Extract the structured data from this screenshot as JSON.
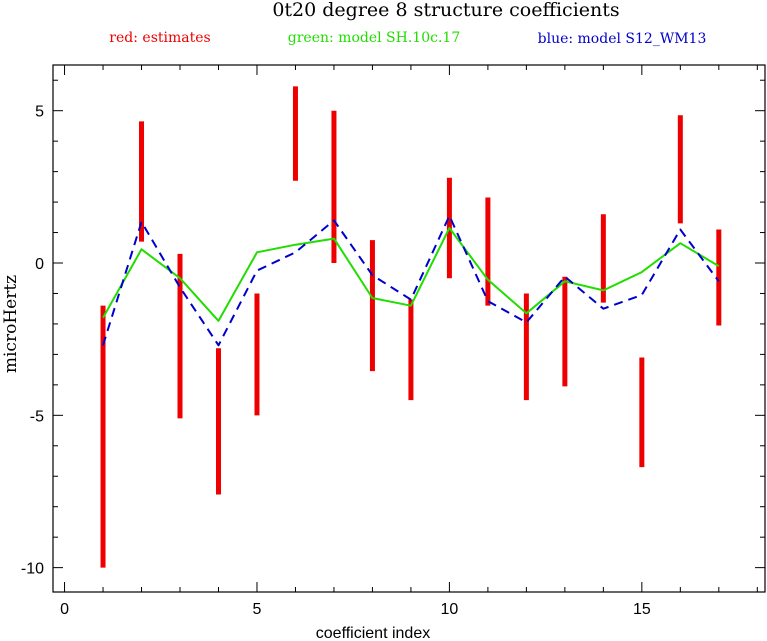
{
  "chart_data": {
    "type": "line",
    "title": "0t20 degree 8 structure coefficients",
    "legend": [
      {
        "label": "red: estimates",
        "color": "#ee0000"
      },
      {
        "label": "green: model SH.10c.17",
        "color": "#22dd00"
      },
      {
        "label": "blue: model S12_WM13",
        "color": "#0000cc"
      }
    ],
    "xlabel": "coefficient index",
    "ylabel": "microHertz",
    "xlim": [
      -0.3,
      18.2
    ],
    "ylim": [
      -10.8,
      6.5
    ],
    "xticks": [
      0,
      5,
      10,
      15
    ],
    "xtick_labels": [
      "0",
      "5",
      "10",
      "15"
    ],
    "yticks": [
      -10,
      -5,
      0,
      5
    ],
    "ytick_labels": [
      "-10",
      "-5",
      "0",
      "5"
    ],
    "grid": false,
    "estimates": [
      {
        "x": 1,
        "low": -10.0,
        "high": -1.4
      },
      {
        "x": 2,
        "low": 0.7,
        "high": 4.65
      },
      {
        "x": 3,
        "low": -5.1,
        "high": 0.3
      },
      {
        "x": 4,
        "low": -7.6,
        "high": -2.8
      },
      {
        "x": 5,
        "low": -5.0,
        "high": -1.0
      },
      {
        "x": 6,
        "low": 2.7,
        "high": 5.8
      },
      {
        "x": 7,
        "low": 0.0,
        "high": 5.0
      },
      {
        "x": 8,
        "low": -3.55,
        "high": 0.75
      },
      {
        "x": 9,
        "low": -4.5,
        "high": -1.2
      },
      {
        "x": 10,
        "low": -0.5,
        "high": 2.8
      },
      {
        "x": 11,
        "low": -1.4,
        "high": 2.15
      },
      {
        "x": 12,
        "low": -4.5,
        "high": -1.0
      },
      {
        "x": 13,
        "low": -4.05,
        "high": -0.45
      },
      {
        "x": 14,
        "low": -1.3,
        "high": 1.6
      },
      {
        "x": 15,
        "low": -6.7,
        "high": -3.1
      },
      {
        "x": 16,
        "low": 1.3,
        "high": 4.85
      },
      {
        "x": 17,
        "low": -2.05,
        "high": 1.1
      }
    ],
    "series": [
      {
        "name": "model SH.10c.17",
        "color": "#22dd00",
        "style": "solid",
        "x": [
          1,
          2,
          3,
          4,
          5,
          6,
          7,
          8,
          9,
          10,
          11,
          12,
          13,
          14,
          15,
          16,
          17
        ],
        "values": [
          -1.8,
          0.45,
          -0.5,
          -1.9,
          0.35,
          0.6,
          0.8,
          -1.15,
          -1.4,
          1.15,
          -0.55,
          -1.65,
          -0.6,
          -0.9,
          -0.3,
          0.65,
          -0.1
        ]
      },
      {
        "name": "model S12_WM13",
        "color": "#0000cc",
        "style": "dashed",
        "x": [
          1,
          2,
          3,
          4,
          5,
          6,
          7,
          8,
          9,
          10,
          11,
          12,
          13,
          14,
          15,
          16,
          17
        ],
        "values": [
          -2.7,
          1.35,
          -0.8,
          -2.7,
          -0.25,
          0.35,
          1.4,
          -0.4,
          -1.2,
          1.55,
          -1.25,
          -1.95,
          -0.45,
          -1.5,
          -1.05,
          1.1,
          -0.6
        ]
      }
    ]
  }
}
